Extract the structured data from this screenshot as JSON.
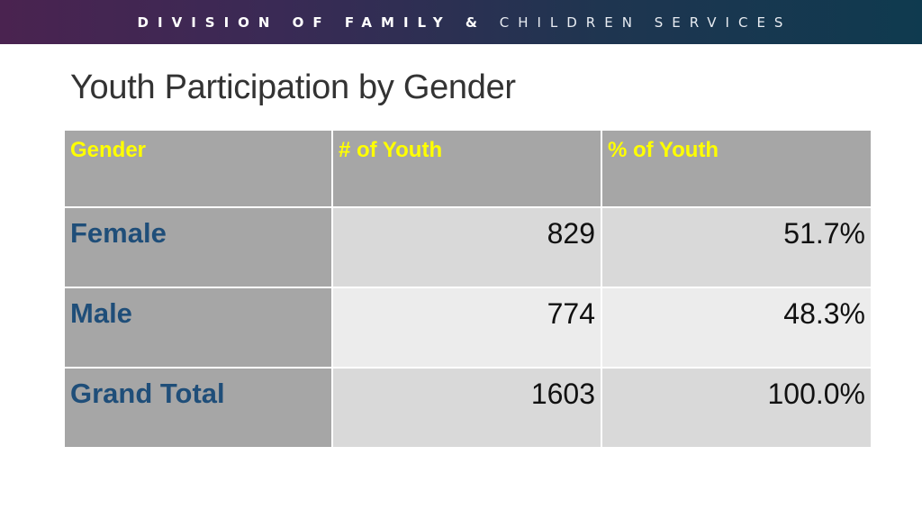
{
  "banner": {
    "bold_part": "DIVISION OF FAMILY &",
    "light_part": "CHILDREN SERVICES"
  },
  "title": "Youth Participation by Gender",
  "table": {
    "headers": [
      "Gender",
      "# of Youth",
      "% of Youth"
    ],
    "rows": [
      {
        "gender": "Female",
        "count": "829",
        "percent": "51.7%"
      },
      {
        "gender": "Male",
        "count": "774",
        "percent": "48.3%"
      },
      {
        "gender": "Grand Total",
        "count": "1603",
        "percent": "100.0%"
      }
    ]
  },
  "colors": {
    "header_text": "#ffff00",
    "label_text": "#1f4e79",
    "header_bg": "#a6a6a6",
    "banner_start": "#4a2350",
    "banner_end": "#0f3a4f"
  }
}
